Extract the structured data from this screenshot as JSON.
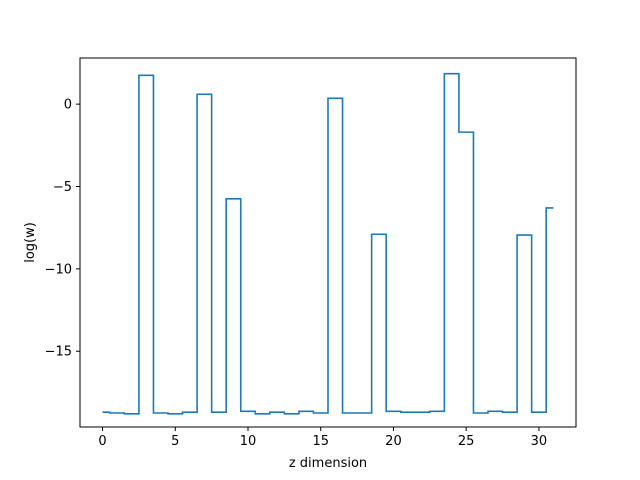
{
  "chart_data": {
    "type": "line",
    "drawstyle": "steps-mid",
    "title": "",
    "xlabel": "z dimension",
    "ylabel": "log(w)",
    "xlim": [
      -1.55,
      32.55
    ],
    "ylim": [
      -19.6,
      2.8
    ],
    "xticks": [
      0,
      5,
      10,
      15,
      20,
      25,
      30
    ],
    "yticks": [
      0,
      -5,
      -10,
      -15
    ],
    "ytick_labels": [
      "0",
      "−5",
      "−10",
      "−15"
    ],
    "grid": false,
    "legend": "none",
    "colors": {
      "line": "#1f77b4"
    },
    "series": [
      {
        "x": [
          0,
          1,
          2,
          3,
          4,
          5,
          6,
          7,
          8,
          9,
          10,
          11,
          12,
          13,
          14,
          15,
          16,
          17,
          18,
          19,
          20,
          21,
          22,
          23,
          24,
          25,
          26,
          27,
          28,
          29,
          30,
          31
        ],
        "values": [
          -18.7,
          -18.75,
          -18.8,
          1.75,
          -18.75,
          -18.8,
          -18.7,
          0.6,
          -18.7,
          -5.75,
          -18.65,
          -18.8,
          -18.7,
          -18.8,
          -18.65,
          -18.75,
          0.35,
          -18.75,
          -18.75,
          -7.9,
          -18.65,
          -18.7,
          -18.7,
          -18.65,
          1.85,
          -1.7,
          -18.75,
          -18.65,
          -18.7,
          -7.95,
          -18.7,
          -6.3
        ]
      }
    ]
  }
}
